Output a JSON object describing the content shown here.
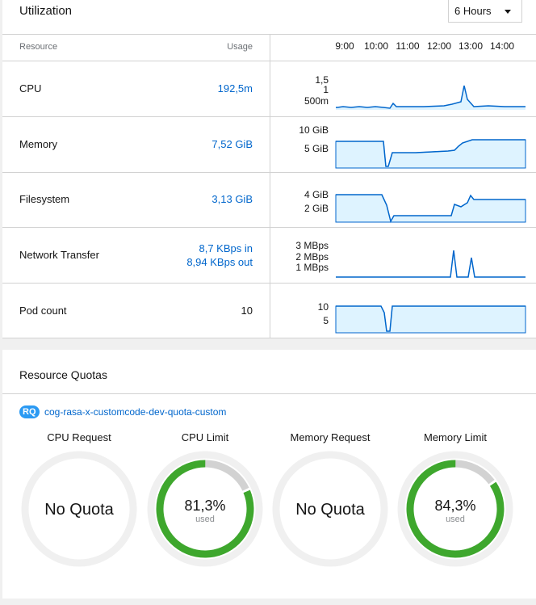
{
  "utilization": {
    "title": "Utilization",
    "time_range": "6 Hours",
    "col_resource": "Resource",
    "col_usage": "Usage",
    "time_labels": [
      "9:00",
      "10:00",
      "11:00",
      "12:00",
      "13:00",
      "14:00"
    ],
    "rows": [
      {
        "label": "CPU",
        "usage": "192,5m",
        "axis": [
          "1,5",
          "1",
          "500m"
        ]
      },
      {
        "label": "Memory",
        "usage": "7,52 GiB",
        "axis": [
          "10 GiB",
          "5 GiB"
        ]
      },
      {
        "label": "Filesystem",
        "usage": "3,13 GiB",
        "axis": [
          "4 GiB",
          "2 GiB"
        ]
      },
      {
        "label": "Network Transfer",
        "usage_in": "8,7 KBps in",
        "usage_out": "8,94 KBps out",
        "axis": [
          "3 MBps",
          "2 MBps",
          "1 MBps"
        ]
      },
      {
        "label": "Pod count",
        "usage": "10",
        "axis": [
          "10",
          "5"
        ]
      }
    ]
  },
  "quotas": {
    "title": "Resource Quotas",
    "badge": "RQ",
    "quota_name": "cog-rasa-x-customcode-dev-quota-custom",
    "gauges": [
      {
        "title": "CPU Request",
        "value": "No Quota",
        "sub": "",
        "percent": null
      },
      {
        "title": "CPU Limit",
        "value": "81,3%",
        "sub": "used",
        "percent": 81.3
      },
      {
        "title": "Memory Request",
        "value": "No Quota",
        "sub": "",
        "percent": null
      },
      {
        "title": "Memory Limit",
        "value": "84,3%",
        "sub": "used",
        "percent": 84.3
      }
    ]
  },
  "colors": {
    "link": "#0066cc",
    "line": "#0066cc",
    "area": "#def3ff",
    "gauge_used": "#3ea72d",
    "gauge_track": "#f0f0f0",
    "gauge_remaining": "#d2d2d2"
  }
}
